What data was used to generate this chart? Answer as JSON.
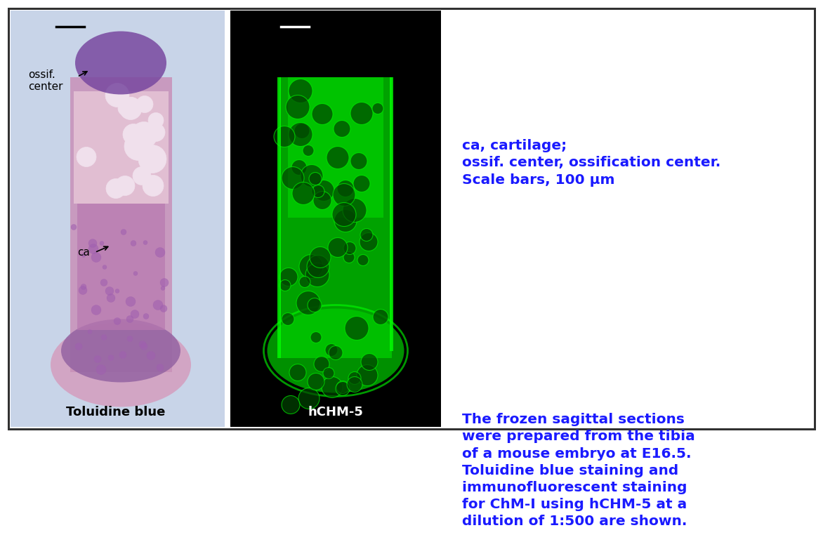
{
  "fig_width": 11.52,
  "fig_height": 6.03,
  "bg_color": "#ffffff",
  "border_color": "#000000",
  "panel1_label": "Toluidine blue",
  "panel2_label": "hCHM-5",
  "label_color1": "#000000",
  "label_color2": "#ffffff",
  "annotation1_text": "ca",
  "annotation2_text": "ossif.\ncenter",
  "description_text": "The frozen sagittal sections\nwere prepared from the tibia\nof a mouse embryo at E16.5.\nToluidine blue staining and\nimmunofluorescent staining\nfor ChM-I using hCHM-5 at a\ndilution of 1:500 are shown.",
  "legend_text": "ca, cartilage;\nossif. center, ossification center.\nScale bars, 100 μm",
  "text_color": "#1a1aff",
  "panel1_bg": "#c8d8f0",
  "panel2_bg": "#000000",
  "panel_border": "#000000"
}
